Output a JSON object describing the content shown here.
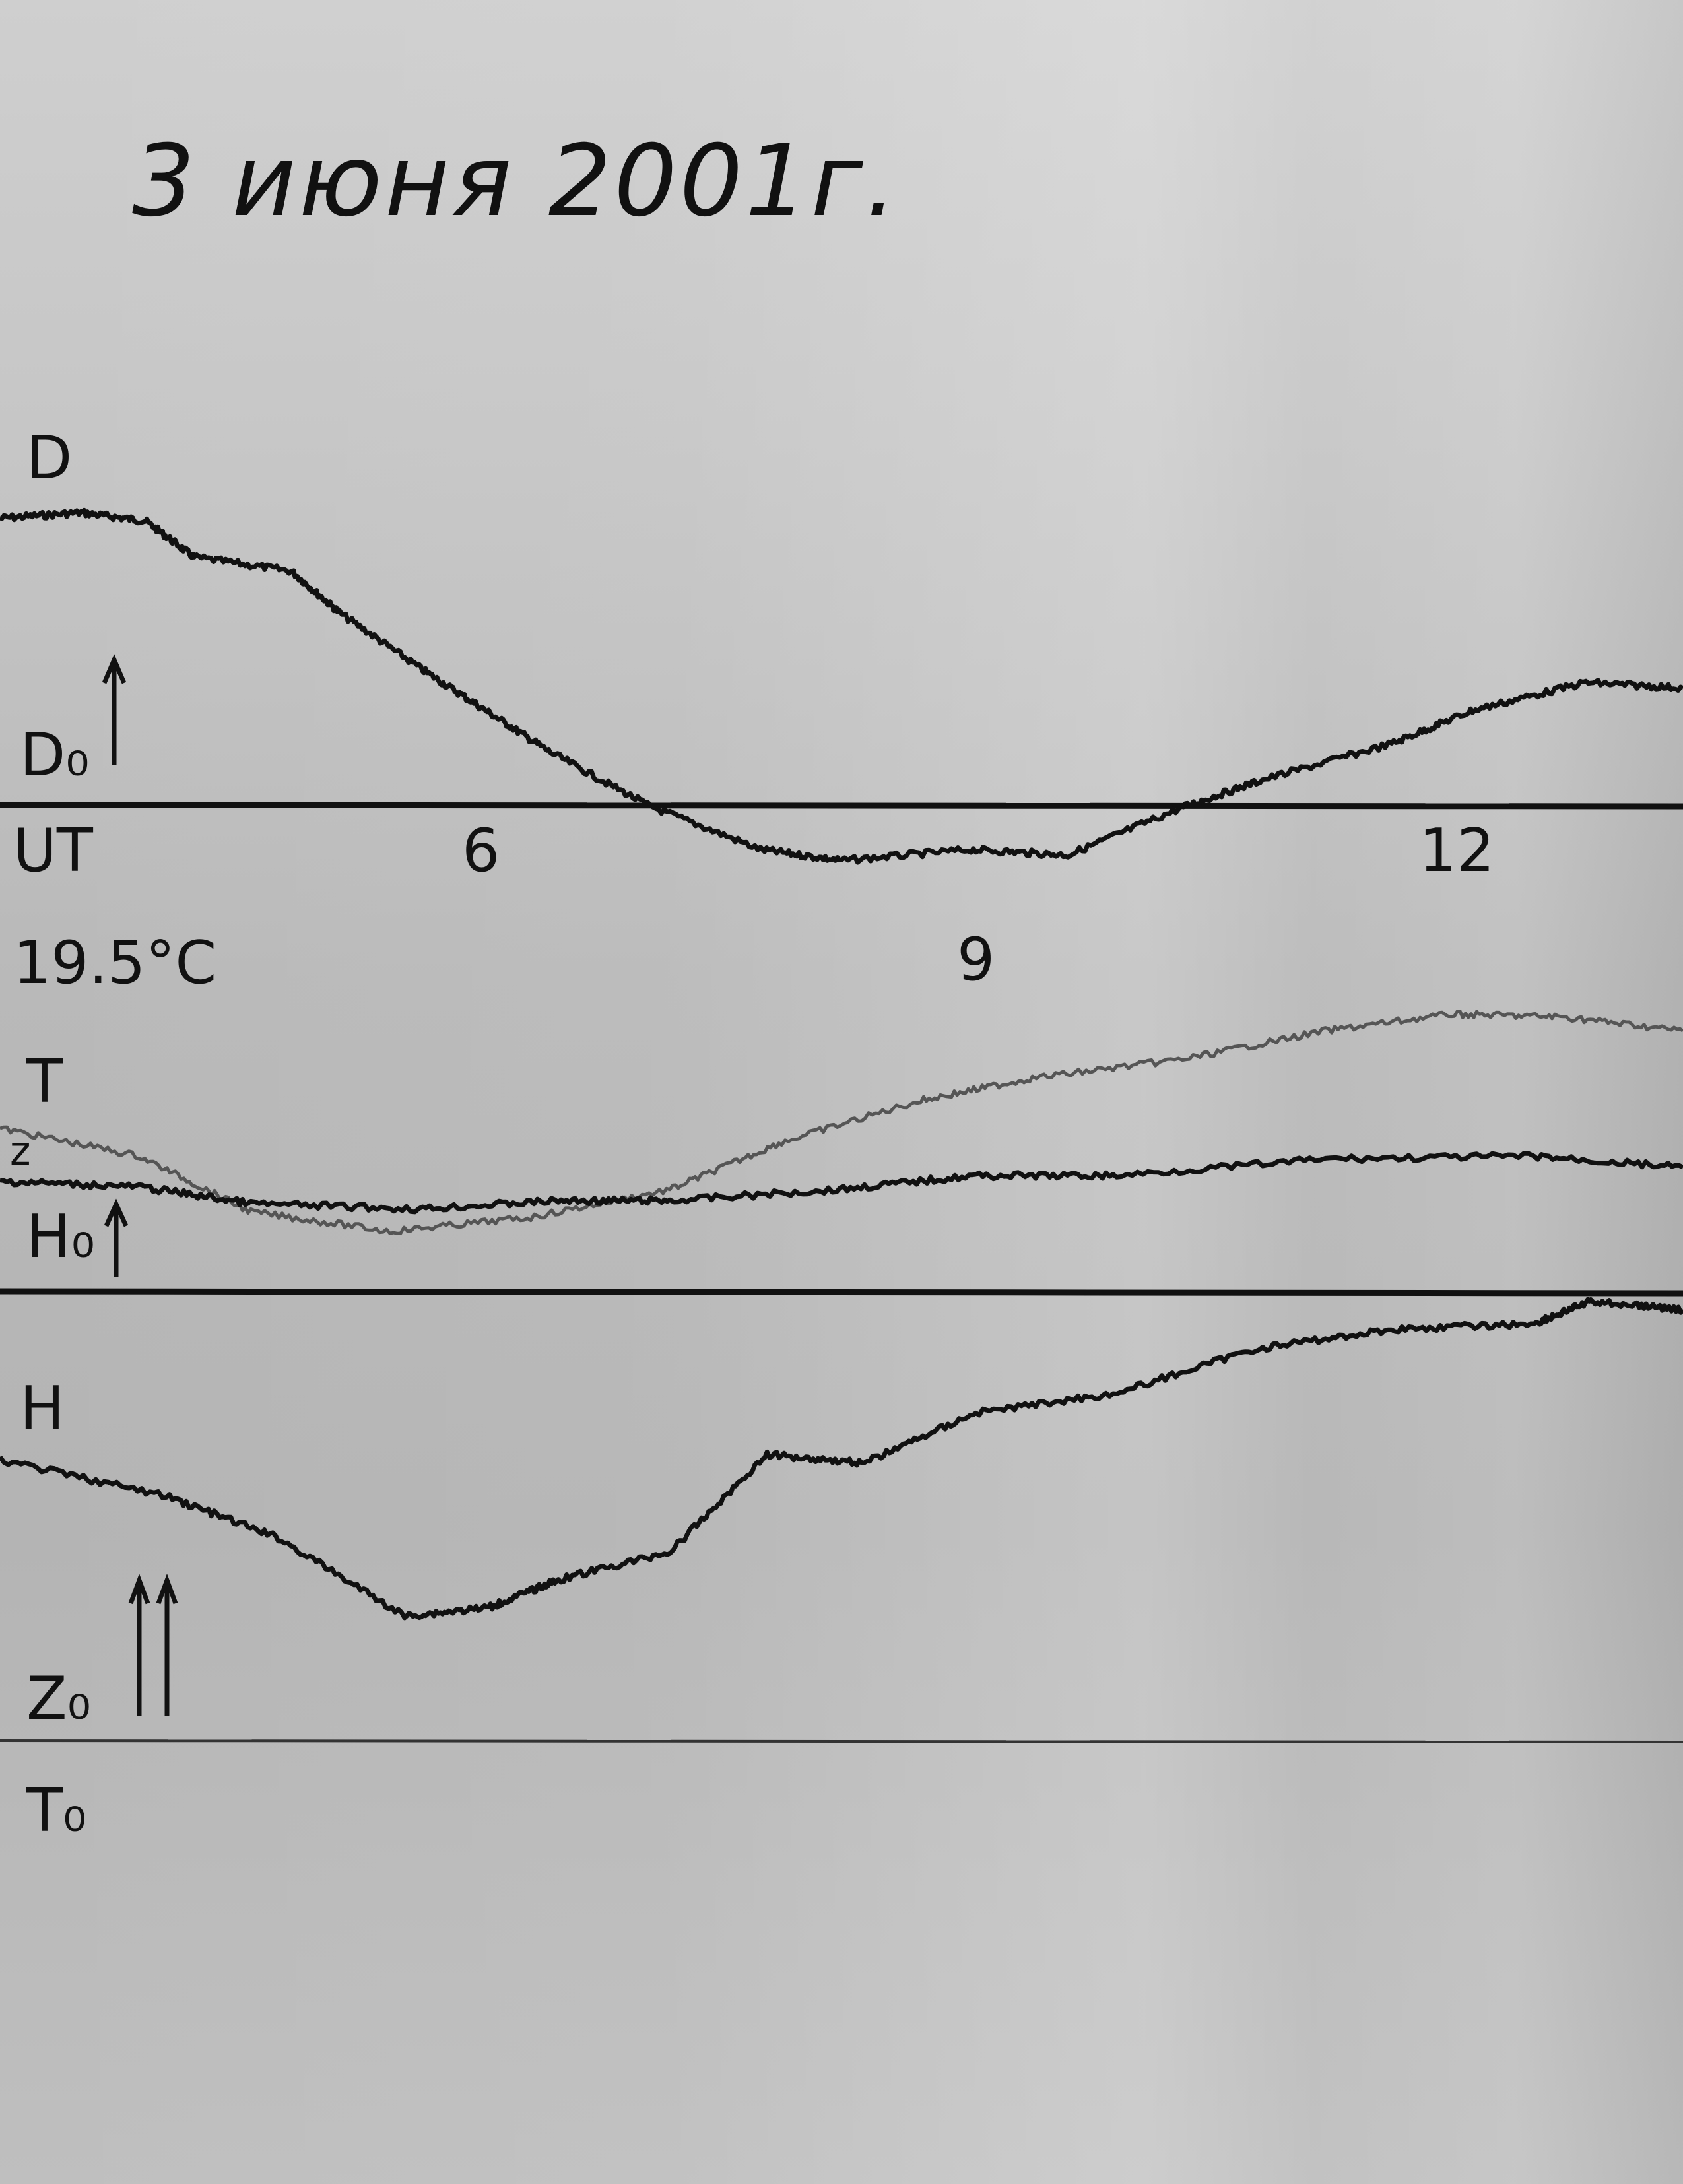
{
  "chart_data": {
    "type": "line",
    "title": "3 июня 2001г.",
    "xlabel": "UT",
    "x_ticks": [
      "6",
      "9",
      "12"
    ],
    "xlim": [
      3.0,
      13.4
    ],
    "grid": false,
    "panels": [
      {
        "labels": {
          "top": "D",
          "baseline": "D₀"
        },
        "series": [
          {
            "name": "D",
            "color": "#111111",
            "x": [
              3.0,
              3.5,
              3.9,
              4.2,
              4.8,
              5.1,
              5.6,
              6.0,
              6.4,
              7.0,
              7.7,
              8.2,
              9.0,
              9.6,
              10.3,
              10.8,
              11.6,
              12.1,
              12.8,
              13.4
            ],
            "y": [
              103,
              105,
              102,
              89,
              84,
              69,
              49,
              34,
              19,
              0,
              -16,
              -20,
              -16,
              -18,
              -1,
              9,
              22,
              34,
              44,
              42
            ]
          }
        ]
      },
      {
        "labels": {
          "temperature": "19.5°C",
          "top": "T",
          "series_tag": "z",
          "baseline": "H₀"
        },
        "series": [
          {
            "name": "T",
            "color": "#555555",
            "x": [
              3.0,
              3.86,
              4.55,
              5.41,
              6.28,
              7.14,
              7.83,
              8.69,
              9.38,
              10.33,
              11.19,
              11.97,
              12.66,
              13.4
            ],
            "y": [
              59,
              49,
              29,
              22,
              27,
              37,
              54,
              69,
              77,
              84,
              94,
              100,
              99,
              94
            ]
          },
          {
            "name": "z",
            "color": "#111111",
            "x": [
              3.0,
              3.86,
              4.55,
              5.59,
              6.45,
              7.14,
              8.17,
              9.03,
              9.9,
              11.19,
              12.48,
              13.4
            ],
            "y": [
              40,
              38,
              32,
              30,
              33,
              33,
              37,
              42,
              42,
              48,
              49,
              45
            ]
          }
        ]
      },
      {
        "labels": {
          "top": "H",
          "baseline": "Z₀",
          "bottom": "T₀"
        },
        "series": [
          {
            "name": "H",
            "color": "#111111",
            "x": [
              3.0,
              4.03,
              4.72,
              5.5,
              6.02,
              6.45,
              7.14,
              7.74,
              8.34,
              9.03,
              9.9,
              10.76,
              11.62,
              12.48,
              12.83,
              13.4
            ],
            "y": [
              101,
              88,
              73,
              45,
              48,
              58,
              68,
              103,
              100,
              118,
              125,
              141,
              148,
              150,
              158,
              155
            ]
          }
        ]
      }
    ]
  }
}
